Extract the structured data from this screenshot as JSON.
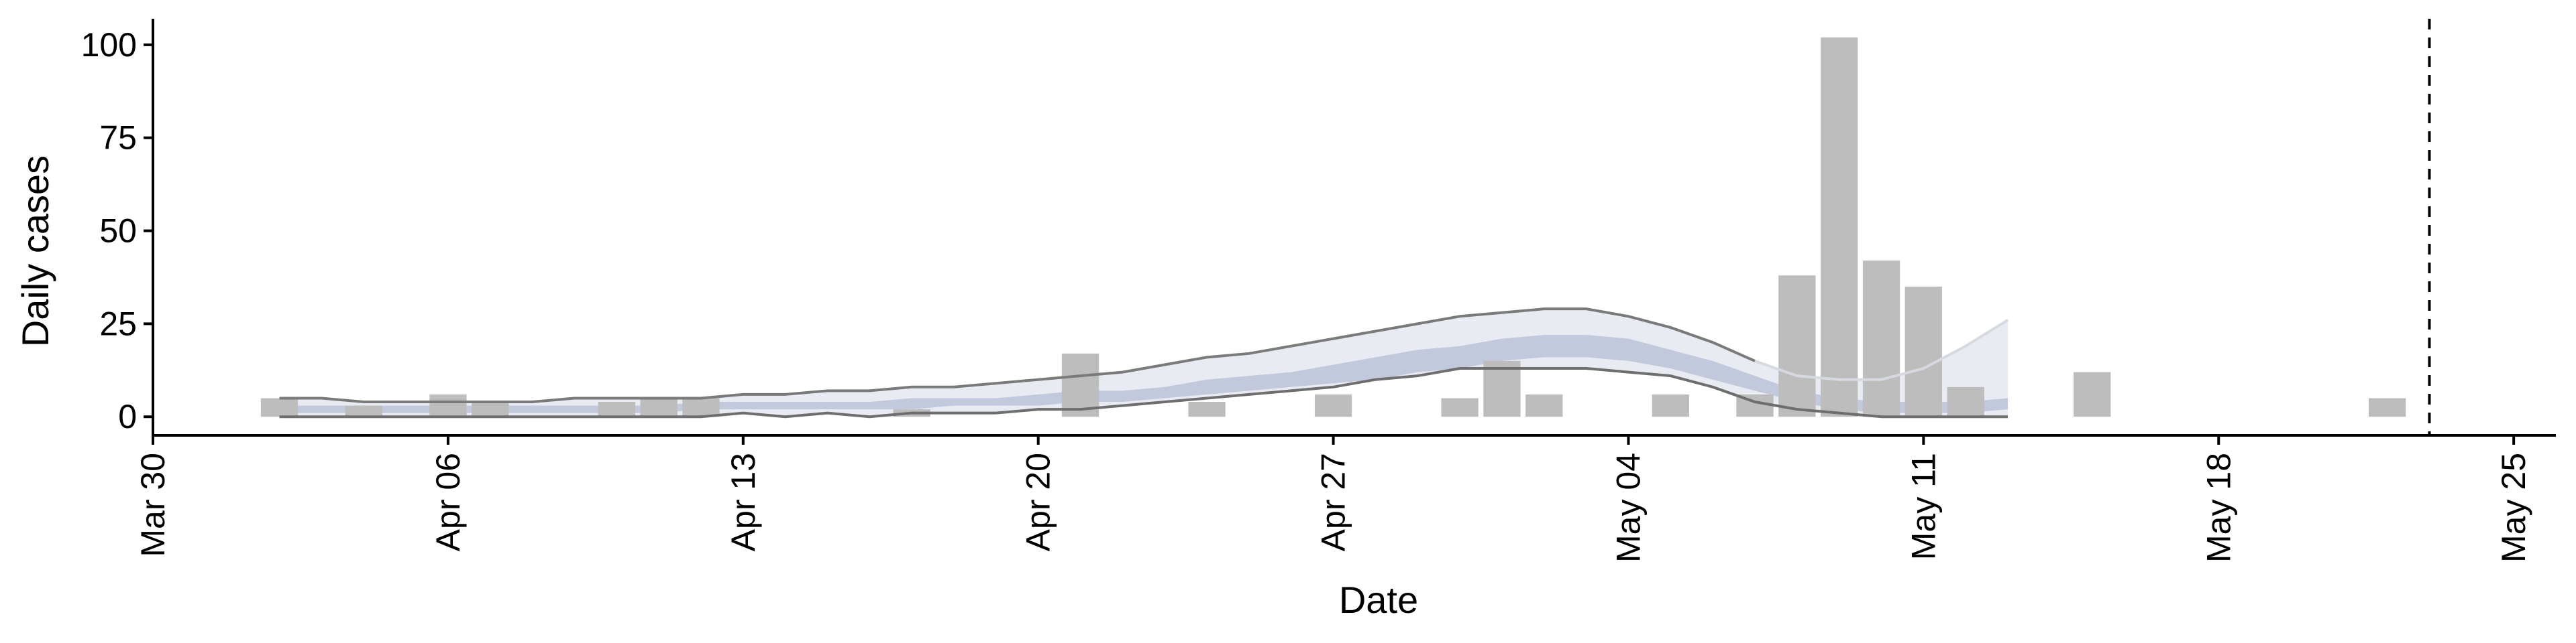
{
  "chart_data": {
    "type": "bar",
    "xlabel": "Date",
    "ylabel": "Daily cases",
    "x_ticks": [
      "Mar 30",
      "Apr 06",
      "Apr 13",
      "Apr 20",
      "Apr 27",
      "May 04",
      "May 11",
      "May 18",
      "May 25"
    ],
    "y_ticks": [
      "0",
      "25",
      "50",
      "75",
      "100"
    ],
    "xlim": [
      "2020-03-30",
      "2020-05-26"
    ],
    "ylim": [
      -5,
      107
    ],
    "bars": {
      "name": "",
      "color": "#bdbdbd",
      "dates": [
        "2020-04-02",
        "2020-04-04",
        "2020-04-06",
        "2020-04-07",
        "2020-04-10",
        "2020-04-11",
        "2020-04-12",
        "2020-04-17",
        "2020-04-21",
        "2020-04-24",
        "2020-04-27",
        "2020-04-30",
        "2020-05-01",
        "2020-05-02",
        "2020-05-05",
        "2020-05-07",
        "2020-05-08",
        "2020-05-09",
        "2020-05-10",
        "2020-05-11",
        "2020-05-12",
        "2020-05-15",
        "2020-05-22"
      ],
      "values": [
        5,
        3,
        6,
        4,
        4,
        5,
        5,
        2,
        17,
        4,
        6,
        5,
        15,
        6,
        6,
        6,
        38,
        102,
        42,
        35,
        8,
        12,
        5
      ]
    },
    "band_outer": {
      "color": "#e9ebf3",
      "dates": [
        "2020-04-02",
        "2020-04-03",
        "2020-04-04",
        "2020-04-05",
        "2020-04-06",
        "2020-04-07",
        "2020-04-08",
        "2020-04-09",
        "2020-04-10",
        "2020-04-11",
        "2020-04-12",
        "2020-04-13",
        "2020-04-14",
        "2020-04-15",
        "2020-04-16",
        "2020-04-17",
        "2020-04-18",
        "2020-04-19",
        "2020-04-20",
        "2020-04-21",
        "2020-04-22",
        "2020-04-23",
        "2020-04-24",
        "2020-04-25",
        "2020-04-26",
        "2020-04-27",
        "2020-04-28",
        "2020-04-29",
        "2020-04-30",
        "2020-05-01",
        "2020-05-02",
        "2020-05-03",
        "2020-05-04",
        "2020-05-05",
        "2020-05-06",
        "2020-05-07",
        "2020-05-08",
        "2020-05-09",
        "2020-05-10",
        "2020-05-11",
        "2020-05-12",
        "2020-05-13"
      ],
      "upper": [
        5,
        5,
        4,
        4,
        4,
        4,
        4,
        5,
        5,
        5,
        5,
        6,
        6,
        7,
        7,
        8,
        8,
        9,
        10,
        11,
        12,
        14,
        16,
        17,
        19,
        21,
        23,
        25,
        27,
        28,
        29,
        29,
        27,
        24,
        20,
        15,
        11,
        10,
        10,
        13,
        19,
        26
      ],
      "lower": [
        0,
        0,
        0,
        0,
        0,
        0,
        0,
        0,
        0,
        0,
        0,
        1,
        0,
        1,
        0,
        1,
        1,
        1,
        2,
        2,
        3,
        4,
        5,
        6,
        7,
        8,
        10,
        11,
        13,
        13,
        13,
        13,
        12,
        11,
        8,
        4,
        2,
        1,
        0,
        0,
        0,
        0
      ]
    },
    "band_inner": {
      "color": "#c3c9dd",
      "dates": [
        "2020-04-02",
        "2020-04-03",
        "2020-04-04",
        "2020-04-05",
        "2020-04-06",
        "2020-04-07",
        "2020-04-08",
        "2020-04-09",
        "2020-04-10",
        "2020-04-11",
        "2020-04-12",
        "2020-04-13",
        "2020-04-14",
        "2020-04-15",
        "2020-04-16",
        "2020-04-17",
        "2020-04-18",
        "2020-04-19",
        "2020-04-20",
        "2020-04-21",
        "2020-04-22",
        "2020-04-23",
        "2020-04-24",
        "2020-04-25",
        "2020-04-26",
        "2020-04-27",
        "2020-04-28",
        "2020-04-29",
        "2020-04-30",
        "2020-05-01",
        "2020-05-02",
        "2020-05-03",
        "2020-05-04",
        "2020-05-05",
        "2020-05-06",
        "2020-05-07",
        "2020-05-08",
        "2020-05-09",
        "2020-05-10",
        "2020-05-11",
        "2020-05-12",
        "2020-05-13"
      ],
      "upper": [
        3,
        3,
        3,
        3,
        3,
        3,
        3,
        3,
        3,
        3,
        4,
        4,
        4,
        4,
        4,
        5,
        5,
        5,
        6,
        7,
        7,
        8,
        10,
        11,
        12,
        14,
        16,
        18,
        19,
        21,
        22,
        22,
        21,
        18,
        15,
        11,
        7,
        5,
        4,
        4,
        4,
        5
      ],
      "lower": [
        1,
        1,
        1,
        1,
        1,
        1,
        1,
        1,
        1,
        1,
        2,
        2,
        2,
        2,
        2,
        2,
        3,
        3,
        3,
        4,
        4,
        5,
        6,
        7,
        8,
        9,
        10,
        12,
        13,
        15,
        16,
        16,
        15,
        13,
        10,
        7,
        4,
        2,
        1,
        1,
        1,
        2
      ]
    },
    "cutoff_date": "2020-05-23"
  }
}
